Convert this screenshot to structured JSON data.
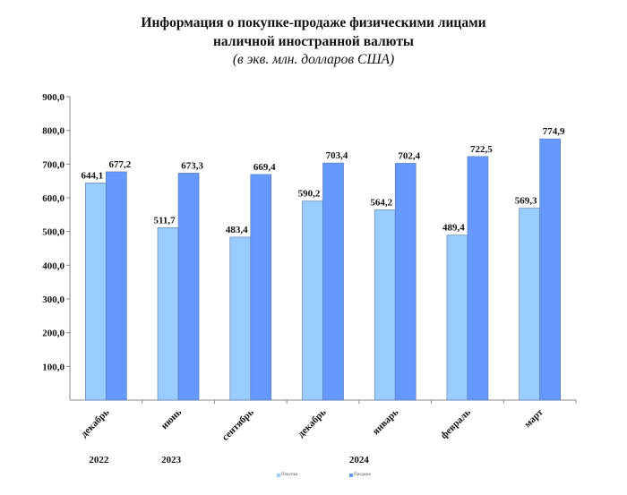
{
  "chart_data": {
    "type": "bar",
    "title": "Информация о покупке-продаже физическими лицами",
    "title_line2": "наличной иностранной валюты",
    "subtitle": "(в экв. млн. долларов США)",
    "categories": [
      "декабрь",
      "июнь",
      "сентябрь",
      "декабрь",
      "январь",
      "февраль",
      "март"
    ],
    "years": [
      {
        "label": "2022",
        "index": 0
      },
      {
        "label": "2023",
        "index": 1
      },
      {
        "label": "2024",
        "index": 3.6
      }
    ],
    "series": [
      {
        "name": "Покупка",
        "color": "#99ccff",
        "values": [
          644.1,
          511.7,
          483.4,
          590.2,
          564.2,
          489.4,
          569.3
        ],
        "labels": [
          "644,1",
          "511,7",
          "483,4",
          "590,2",
          "564,2",
          "489,4",
          "569,3"
        ]
      },
      {
        "name": "Продажа",
        "color": "#6699ff",
        "values": [
          677.2,
          673.3,
          669.4,
          703.4,
          702.4,
          722.5,
          774.9
        ],
        "labels": [
          "677,2",
          "673,3",
          "669,4",
          "703,4",
          "702,4",
          "722,5",
          "774,9"
        ]
      }
    ],
    "yticks": [
      "100,0",
      "200,0",
      "300,0",
      "400,0",
      "500,0",
      "600,0",
      "700,0",
      "800,0",
      "900,0"
    ],
    "ylim": [
      0,
      900
    ],
    "legend": "bottom"
  }
}
